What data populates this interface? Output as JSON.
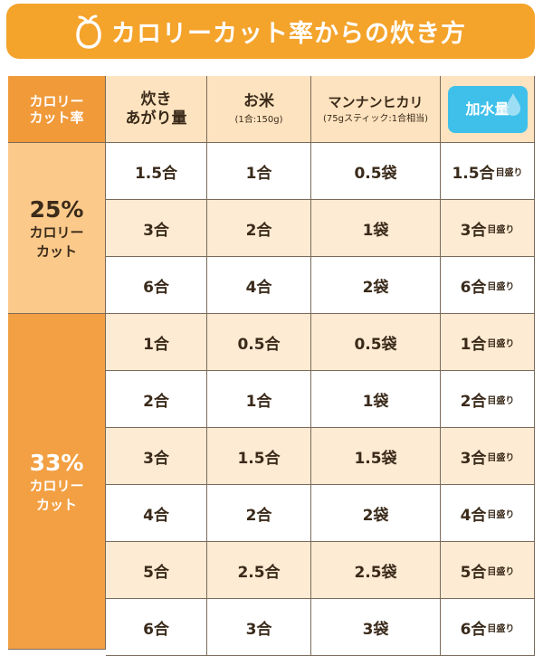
{
  "title": "カロリーカット率からの炊き方",
  "header": {
    "col_rate": [
      "カロリー",
      "カット率"
    ],
    "col_cooked": [
      "炊き",
      "あがり量"
    ],
    "col_rice": "お米",
    "col_rice_note": "(1合:150g)",
    "col_mannan": "マンナンヒカリ",
    "col_mannan_note": "(75gスティック:1合相当)",
    "col_water": "加水量"
  },
  "unit_mark": "目盛り",
  "groups": [
    {
      "pct": "25%",
      "label": [
        "カロリー",
        "カット"
      ],
      "rows": [
        {
          "cooked": "1.5合",
          "rice": "1合",
          "mannan": "0.5袋",
          "water": "1.5合"
        },
        {
          "cooked": "3合",
          "rice": "2合",
          "mannan": "1袋",
          "water": "3合"
        },
        {
          "cooked": "6合",
          "rice": "4合",
          "mannan": "2袋",
          "water": "6合"
        }
      ]
    },
    {
      "pct": "33%",
      "label": [
        "カロリー",
        "カット"
      ],
      "rows": [
        {
          "cooked": "1合",
          "rice": "0.5合",
          "mannan": "0.5袋",
          "water": "1合"
        },
        {
          "cooked": "2合",
          "rice": "1合",
          "mannan": "1袋",
          "water": "2合"
        },
        {
          "cooked": "3合",
          "rice": "1.5合",
          "mannan": "1.5袋",
          "water": "3合"
        },
        {
          "cooked": "4合",
          "rice": "2合",
          "mannan": "2袋",
          "water": "4合"
        },
        {
          "cooked": "5合",
          "rice": "2.5合",
          "mannan": "2.5袋",
          "water": "5合"
        },
        {
          "cooked": "6合",
          "rice": "3合",
          "mannan": "3袋",
          "water": "6合"
        }
      ]
    }
  ],
  "colors": {
    "title_bg": "#f4a32b",
    "group1_bg": "#fbc98a",
    "group2_bg": "#f2a043",
    "header_bg": "#fde3bf",
    "row_alt": "#fdebd3",
    "water_badge": "#3ec0ea"
  }
}
